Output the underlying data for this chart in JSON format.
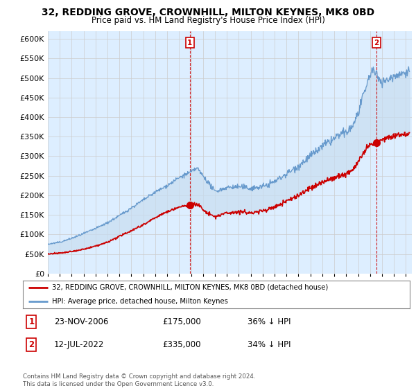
{
  "title": "32, REDDING GROVE, CROWNHILL, MILTON KEYNES, MK8 0BD",
  "subtitle": "Price paid vs. HM Land Registry's House Price Index (HPI)",
  "ylim": [
    0,
    620000
  ],
  "yticks": [
    0,
    50000,
    100000,
    150000,
    200000,
    250000,
    300000,
    350000,
    400000,
    450000,
    500000,
    550000,
    600000
  ],
  "ytick_labels": [
    "£0",
    "£50K",
    "£100K",
    "£150K",
    "£200K",
    "£250K",
    "£300K",
    "£350K",
    "£400K",
    "£450K",
    "£500K",
    "£550K",
    "£600K"
  ],
  "hpi_color": "#6699cc",
  "price_color": "#cc0000",
  "vline_color": "#cc0000",
  "grid_color": "#cccccc",
  "background_color": "#ffffff",
  "chart_bg_color": "#ddeeff",
  "fill_color": "#c8ddf0",
  "sale1_date_x": 2006.9,
  "sale1_price": 175000,
  "sale1_label": "1",
  "sale2_date_x": 2022.55,
  "sale2_price": 335000,
  "sale2_label": "2",
  "legend_line1": "32, REDDING GROVE, CROWNHILL, MILTON KEYNES, MK8 0BD (detached house)",
  "legend_line2": "HPI: Average price, detached house, Milton Keynes",
  "table_row1": [
    "1",
    "23-NOV-2006",
    "£175,000",
    "36% ↓ HPI"
  ],
  "table_row2": [
    "2",
    "12-JUL-2022",
    "£335,000",
    "34% ↓ HPI"
  ],
  "footnote": "Contains HM Land Registry data © Crown copyright and database right 2024.\nThis data is licensed under the Open Government Licence v3.0.",
  "xlim_start": 1995.0,
  "xlim_end": 2025.5
}
